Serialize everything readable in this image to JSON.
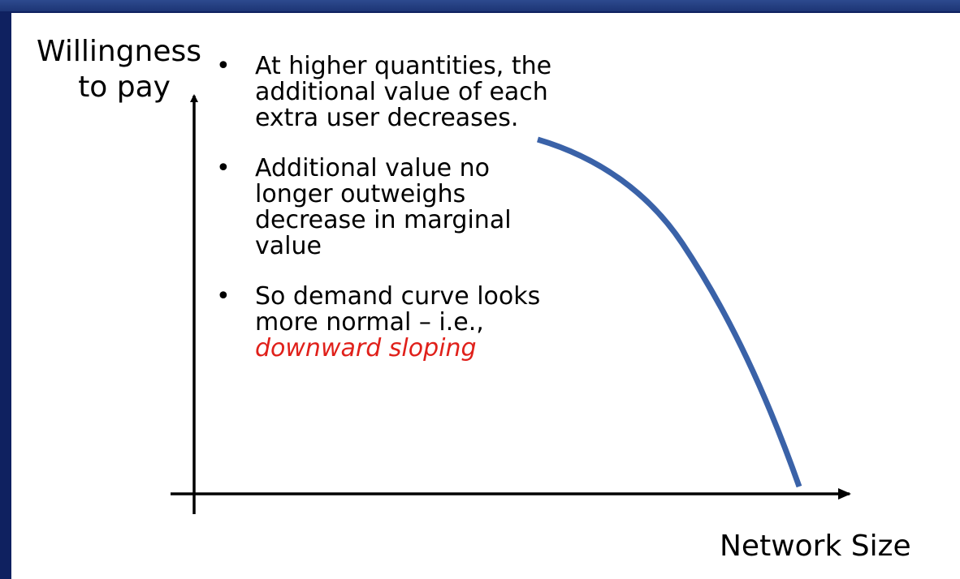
{
  "diagram": {
    "y_axis_label_line1": "Willingness",
    "y_axis_label_line2": "to pay",
    "x_axis_label": "Network Size",
    "bullets": [
      {
        "text": "At higher quantities, the additional value of each extra user decreases."
      },
      {
        "text": "Additional value no longer outweighs decrease in marginal value"
      },
      {
        "text_before": "So demand curve looks more normal – i.e., ",
        "emphasis": "downward sloping"
      }
    ],
    "bullet_glyph": "•",
    "colors": {
      "curve": "#3a62a8",
      "emphasis": "#e0201a",
      "frame": "#0f2160"
    }
  }
}
